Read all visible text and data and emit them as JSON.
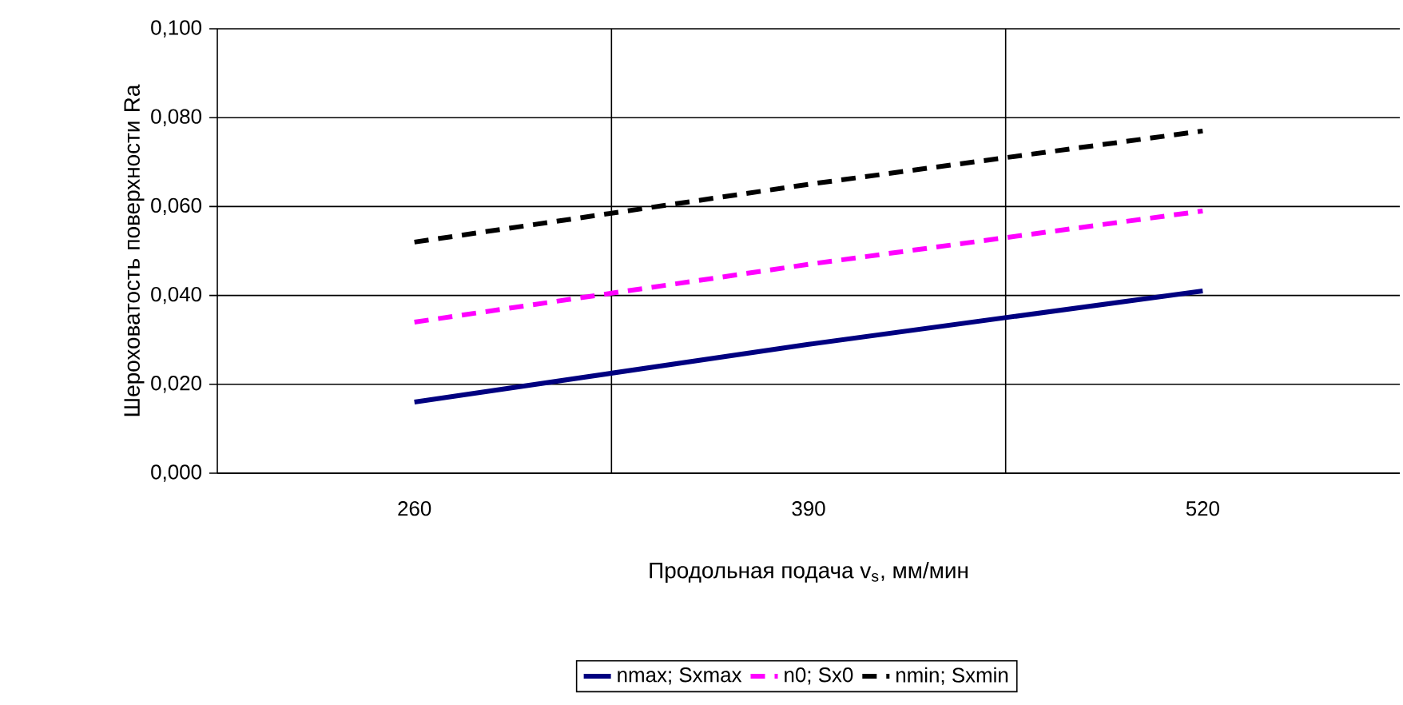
{
  "chart_data": {
    "type": "line",
    "xlabel": "Продольная подача v$_{s}$, мм/мин",
    "ylabel": "Шероховатость поверхности Ra",
    "categories": [
      "260",
      "390",
      "520"
    ],
    "series": [
      {
        "name": "nmax; Sxmax",
        "color": "#000080",
        "values": [
          0.016,
          0.029,
          0.041
        ],
        "line_style": "solid"
      },
      {
        "name": "n0; Sx0",
        "color": "#ff00ff",
        "values": [
          0.034,
          0.047,
          0.059
        ],
        "line_style": "dashed"
      },
      {
        "name": "nmin; Sxmin",
        "color": "#000000",
        "values": [
          0.052,
          0.065,
          0.077
        ],
        "line_style": "dashed"
      }
    ],
    "ylim": [
      0,
      0.1
    ],
    "yticks": [
      {
        "value": 0,
        "label": "0,000"
      },
      {
        "value": 0.02,
        "label": "0,020"
      },
      {
        "value": 0.04,
        "label": "0,040"
      },
      {
        "value": 0.06,
        "label": "0,060"
      },
      {
        "value": 0.08,
        "label": "0,080"
      },
      {
        "value": 0.1,
        "label": "0,100"
      }
    ],
    "grid": true,
    "legend": "bottom",
    "marker": "none"
  }
}
